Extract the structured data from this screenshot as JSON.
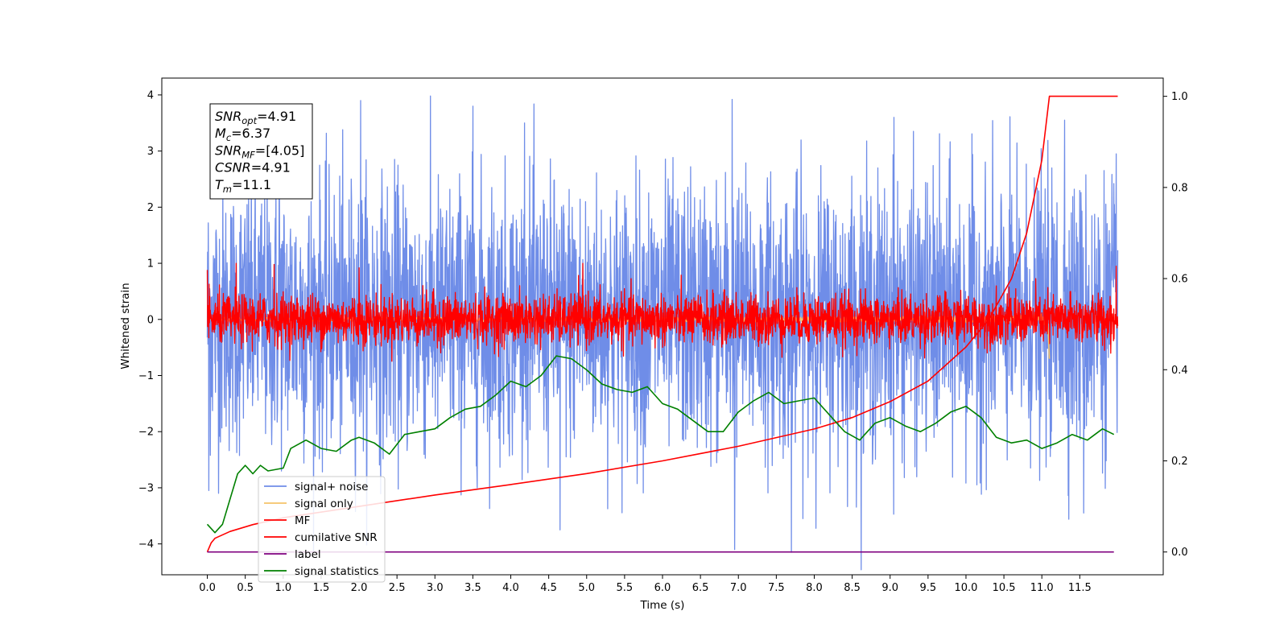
{
  "chart_data": {
    "type": "line",
    "xlabel": "Time (s)",
    "ylabel": "Whitened strain",
    "xlim": [
      -0.6,
      12.6
    ],
    "ylim": [
      -4.55,
      4.3
    ],
    "y2lim": [
      -0.05,
      1.04
    ],
    "x_ticks": [
      0.0,
      0.5,
      1.0,
      1.5,
      2.0,
      2.5,
      3.0,
      3.5,
      4.0,
      4.5,
      5.0,
      5.5,
      6.0,
      6.5,
      7.0,
      7.5,
      8.0,
      8.5,
      9.0,
      9.5,
      10.0,
      10.5,
      11.0,
      11.5
    ],
    "x_tick_labels": [
      "0.0",
      "0.5",
      "1.0",
      "1.5",
      "2.0",
      "2.5",
      "3.0",
      "3.5",
      "4.0",
      "4.5",
      "5.0",
      "5.5",
      "6.0",
      "6.5",
      "7.0",
      "7.5",
      "8.0",
      "8.5",
      "9.0",
      "9.5",
      "10.0",
      "10.5",
      "11.0",
      "11.5"
    ],
    "y_ticks": [
      4,
      3,
      2,
      1,
      0,
      -1,
      -2,
      -3,
      -4
    ],
    "y_tick_labels": [
      "4",
      "3",
      "2",
      "1",
      "0",
      "−1",
      "−2",
      "−3",
      "−4"
    ],
    "y2_ticks": [
      1.0,
      0.8,
      0.6,
      0.4,
      0.2,
      0.0
    ],
    "y2_tick_labels": [
      "1.0",
      "0.8",
      "0.6",
      "0.4",
      "0.2",
      "0.0"
    ],
    "grid": false,
    "legend_position": "lower-left",
    "series": [
      {
        "name": "signal+ noise",
        "axis": "left",
        "color": "#6f8de8",
        "kind": "noise",
        "x_range": [
          0,
          12
        ],
        "mean": 0.05,
        "std": 1.2,
        "extremes": [
          {
            "x": 0.02,
            "y": 2.15
          },
          {
            "x": 0.02,
            "y": -3.05
          },
          {
            "x": 0.95,
            "y": 3.05
          },
          {
            "x": 2.02,
            "y": 3.9
          },
          {
            "x": 3.5,
            "y": 3.8
          },
          {
            "x": 4.18,
            "y": 3.5
          },
          {
            "x": 4.65,
            "y": -3.75
          },
          {
            "x": 6.92,
            "y": 3.92
          },
          {
            "x": 6.95,
            "y": -4.1
          },
          {
            "x": 7.7,
            "y": -4.15
          },
          {
            "x": 9.05,
            "y": 3.6
          },
          {
            "x": 11.3,
            "y": 3.55
          },
          {
            "x": 11.55,
            "y": -3.45
          },
          {
            "x": 11.98,
            "y": 2.95
          }
        ]
      },
      {
        "name": "signal only",
        "axis": "left",
        "color": "#f5c36a",
        "kind": "chirp",
        "x_range": [
          0,
          11.1
        ],
        "amplitude": 0.12,
        "end_dip": -0.7
      },
      {
        "name": "MF",
        "axis": "left",
        "color": "#ff0000",
        "kind": "noise",
        "x_range": [
          0,
          12
        ],
        "mean": 0.0,
        "std": 0.22,
        "extremes": [
          {
            "x": 0.0,
            "y": 0.88
          },
          {
            "x": 0.38,
            "y": 1.0
          },
          {
            "x": 0.88,
            "y": 0.98
          },
          {
            "x": 2.0,
            "y": 0.92
          },
          {
            "x": 4.95,
            "y": 1.0
          },
          {
            "x": 11.98,
            "y": 0.95
          }
        ]
      },
      {
        "name": "cumilative SNR",
        "axis": "right",
        "color": "#ff0000",
        "kind": "curve",
        "x": [
          0.0,
          0.05,
          0.1,
          0.3,
          0.6,
          1.0,
          2.0,
          3.0,
          4.0,
          5.0,
          6.0,
          7.0,
          8.0,
          8.5,
          9.0,
          9.5,
          10.0,
          10.3,
          10.6,
          10.8,
          11.0,
          11.05,
          11.1,
          12.0
        ],
        "values": [
          0.0,
          0.02,
          0.03,
          0.045,
          0.06,
          0.075,
          0.1,
          0.125,
          0.148,
          0.172,
          0.2,
          0.232,
          0.27,
          0.295,
          0.33,
          0.375,
          0.45,
          0.51,
          0.6,
          0.7,
          0.86,
          0.93,
          1.0,
          1.0
        ]
      },
      {
        "name": "label",
        "axis": "right",
        "color": "#800080",
        "kind": "curve",
        "x": [
          0.0,
          11.95
        ],
        "values": [
          0.0,
          0.0
        ]
      },
      {
        "name": "signal statistics",
        "axis": "left",
        "color": "#008000",
        "kind": "curve",
        "x": [
          0.0,
          0.1,
          0.2,
          0.3,
          0.4,
          0.5,
          0.6,
          0.7,
          0.8,
          1.0,
          1.1,
          1.3,
          1.5,
          1.7,
          1.9,
          2.0,
          2.2,
          2.4,
          2.6,
          2.8,
          3.0,
          3.2,
          3.4,
          3.6,
          3.8,
          4.0,
          4.2,
          4.4,
          4.6,
          4.8,
          5.0,
          5.2,
          5.4,
          5.6,
          5.8,
          6.0,
          6.2,
          6.4,
          6.6,
          6.8,
          7.0,
          7.2,
          7.4,
          7.6,
          7.8,
          8.0,
          8.2,
          8.4,
          8.6,
          8.8,
          9.0,
          9.2,
          9.4,
          9.6,
          9.8,
          10.0,
          10.2,
          10.4,
          10.6,
          10.8,
          11.0,
          11.2,
          11.4,
          11.6,
          11.8,
          11.95
        ],
        "values": [
          -3.65,
          -3.8,
          -3.65,
          -3.2,
          -2.75,
          -2.6,
          -2.75,
          -2.6,
          -2.7,
          -2.65,
          -2.3,
          -2.15,
          -2.3,
          -2.35,
          -2.15,
          -2.1,
          -2.2,
          -2.4,
          -2.05,
          -2.0,
          -1.95,
          -1.75,
          -1.6,
          -1.55,
          -1.35,
          -1.1,
          -1.2,
          -1.0,
          -0.65,
          -0.7,
          -0.9,
          -1.15,
          -1.25,
          -1.3,
          -1.2,
          -1.5,
          -1.6,
          -1.8,
          -2.0,
          -2.0,
          -1.65,
          -1.45,
          -1.3,
          -1.5,
          -1.45,
          -1.4,
          -1.7,
          -2.0,
          -2.15,
          -1.85,
          -1.75,
          -1.9,
          -2.0,
          -1.85,
          -1.65,
          -1.55,
          -1.75,
          -2.1,
          -2.2,
          -2.15,
          -2.3,
          -2.2,
          -2.05,
          -2.15,
          -1.95,
          -2.05
        ]
      }
    ],
    "annotations": [
      {
        "base": "SNR",
        "sub": "opt",
        "rest": "=4.91"
      },
      {
        "base": "M",
        "sub": "c",
        "rest": "=6.37"
      },
      {
        "base": "SNR",
        "sub": "MF",
        "rest": "=[4.05]"
      },
      {
        "base": "CSNR",
        "sub": "",
        "rest": "=4.91"
      },
      {
        "base": "T",
        "sub": "m",
        "rest": "=11.1"
      }
    ]
  }
}
